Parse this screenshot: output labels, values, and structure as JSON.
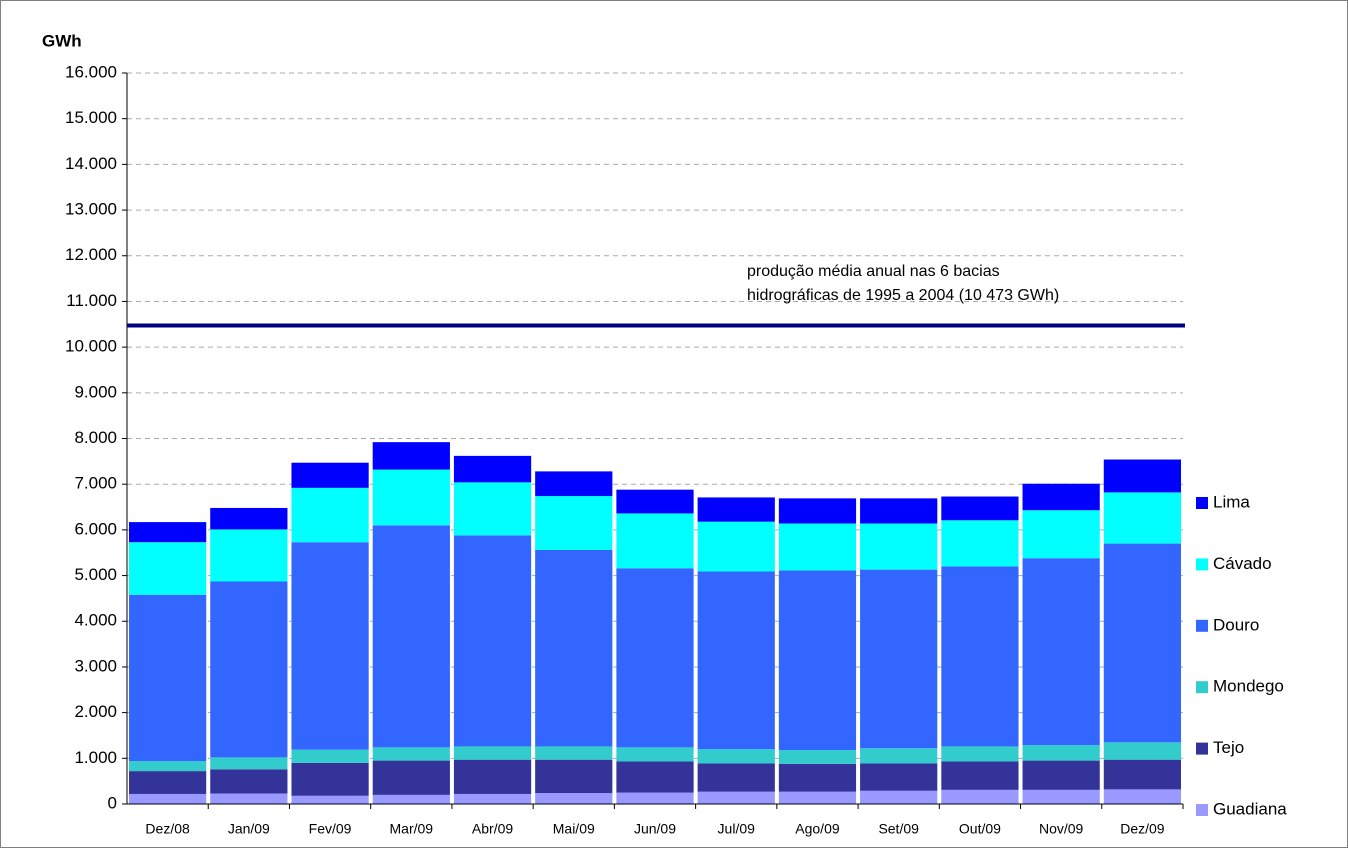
{
  "chart_data": {
    "type": "stacked_bar",
    "y_label": "GWh",
    "categories": [
      "Dez/08",
      "Jan/09",
      "Fev/09",
      "Mar/09",
      "Abr/09",
      "Mai/09",
      "Jun/09",
      "Jul/09",
      "Ago/09",
      "Set/09",
      "Out/09",
      "Nov/09",
      "Dez/09"
    ],
    "series": [
      {
        "name": "Guadiana",
        "color": "#9999ff",
        "values": [
          220,
          230,
          180,
          200,
          220,
          240,
          250,
          270,
          270,
          290,
          310,
          310,
          320
        ]
      },
      {
        "name": "Tejo",
        "color": "#333399",
        "values": [
          500,
          530,
          720,
          750,
          750,
          730,
          680,
          620,
          610,
          600,
          620,
          640,
          650
        ]
      },
      {
        "name": "Mondego",
        "color": "#33cccc",
        "values": [
          220,
          260,
          290,
          290,
          290,
          290,
          310,
          310,
          300,
          330,
          330,
          340,
          380
        ]
      },
      {
        "name": "Douro",
        "color": "#3366ff",
        "values": [
          3640,
          3850,
          4540,
          4860,
          4620,
          4300,
          3920,
          3890,
          3930,
          3910,
          3940,
          4090,
          4350
        ]
      },
      {
        "name": "Cávado",
        "color": "#00ffff",
        "values": [
          1150,
          1140,
          1190,
          1220,
          1160,
          1180,
          1200,
          1090,
          1030,
          1010,
          1010,
          1050,
          1120
        ]
      },
      {
        "name": "Lima",
        "color": "#0000ff",
        "values": [
          440,
          470,
          550,
          600,
          580,
          540,
          520,
          530,
          550,
          550,
          520,
          580,
          720
        ]
      }
    ],
    "reference_line": {
      "value": 10473,
      "color": "#000080",
      "annotation": [
        "produção média anual nas 6 bacias",
        "hidrográficas de 1995 a 2004 (10 473 GWh)"
      ]
    },
    "ylim": [
      0,
      16000
    ],
    "yticks": [
      0,
      {
        "value": 1000,
        "label": "1.000"
      },
      {
        "value": 2000,
        "label": "2.000"
      },
      {
        "value": 3000,
        "label": "3.000"
      },
      {
        "value": 4000,
        "label": "4.000"
      },
      {
        "value": 5000,
        "label": "5.000"
      },
      {
        "value": 6000,
        "label": "6.000"
      },
      {
        "value": 7000,
        "label": "7.000"
      },
      {
        "value": 8000,
        "label": "8.000"
      },
      {
        "value": 9000,
        "label": "9.000"
      },
      {
        "value": 10000,
        "label": "10.000"
      },
      {
        "value": 11000,
        "label": "11.000"
      },
      {
        "value": 12000,
        "label": "12.000"
      },
      {
        "value": 13000,
        "label": "13.000"
      },
      {
        "value": 14000,
        "label": "14.000"
      },
      {
        "value": 15000,
        "label": "15.000"
      },
      {
        "value": 16000,
        "label": "16.000"
      }
    ],
    "grid": true,
    "legend": "right"
  }
}
